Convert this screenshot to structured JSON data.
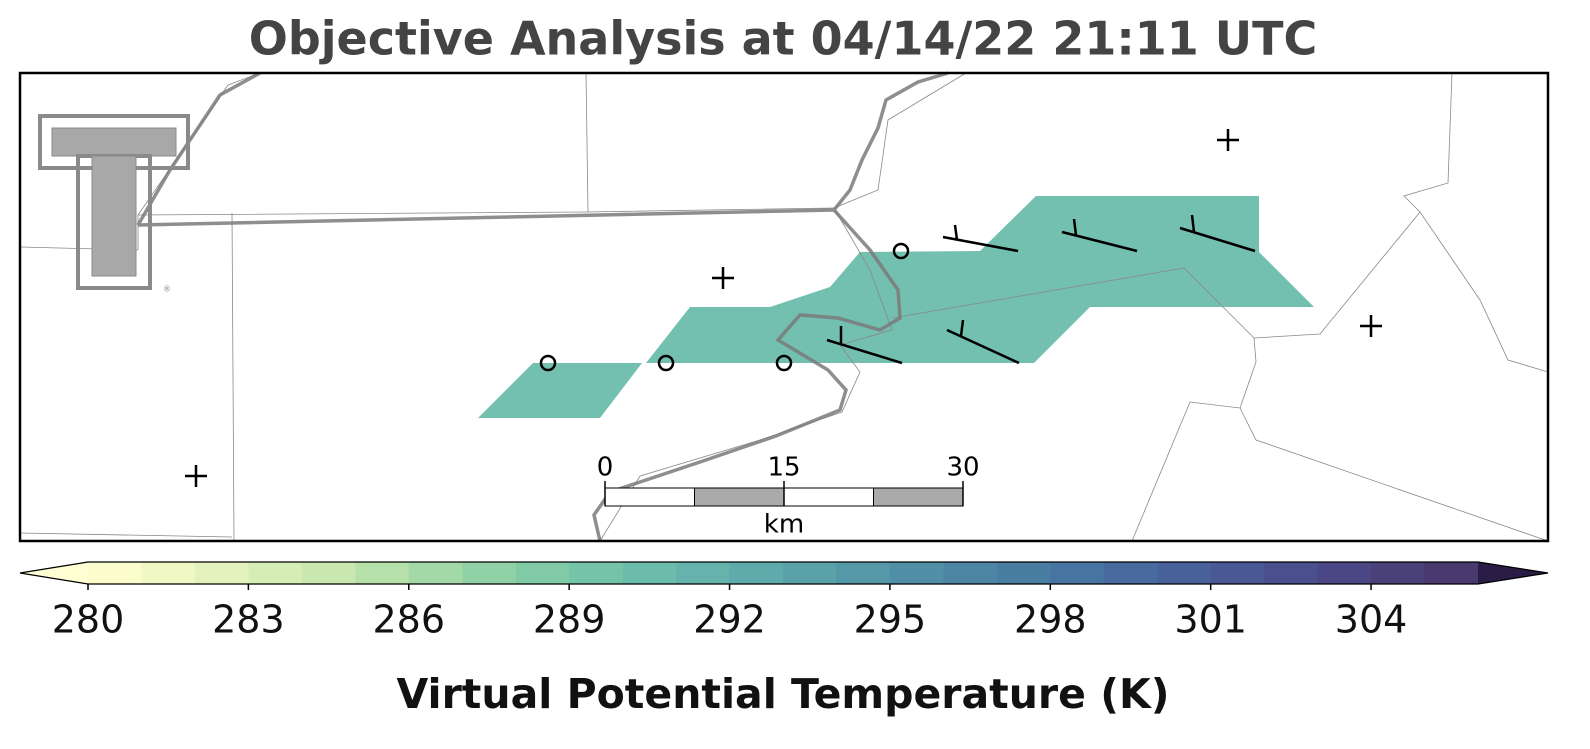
{
  "title": "Objective Analysis at 04/14/22 21:11 UTC",
  "field": {
    "value": 290
  },
  "colorbar": {
    "label": "Virtual Potential Temperature (K)",
    "vlim": [
      280,
      306
    ],
    "ticks": [
      280,
      283,
      286,
      289,
      292,
      295,
      298,
      301,
      304
    ],
    "colors": [
      "#fcfdcc",
      "#f0f8c4",
      "#e4f3bd",
      "#d6eeb6",
      "#c8e8b0",
      "#b6e1aa",
      "#a3d9a6",
      "#90d2a5",
      "#80cba6",
      "#75c4a9",
      "#6cbcac",
      "#65b3ac",
      "#5faaab",
      "#5aa1aa",
      "#5598a8",
      "#518fa6",
      "#4d86a4",
      "#4a7da2",
      "#4874a1",
      "#486a9e",
      "#49619a",
      "#4a5895",
      "#4b4f8e",
      "#4b4785",
      "#4a407a",
      "#48396e"
    ],
    "under_color": "#ffffd3",
    "over_color": "#2a1d45"
  },
  "scale_bar": {
    "ticks": [
      0,
      15,
      30
    ],
    "unit": "km"
  }
}
